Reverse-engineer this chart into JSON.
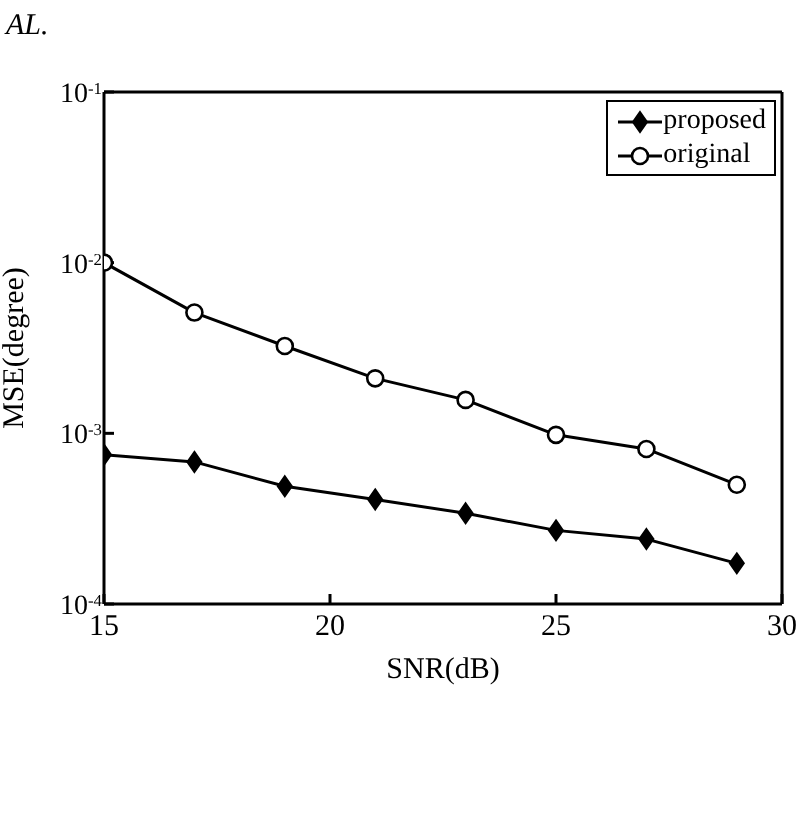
{
  "chart_data": {
    "type": "line",
    "xlabel": "SNR(dB)",
    "ylabel": "MSE(degree)",
    "annotations": [
      "AL."
    ],
    "x": [
      15,
      17,
      19,
      21,
      23,
      25,
      27,
      29
    ],
    "series": [
      {
        "name": "proposed",
        "color": "#000000",
        "marker": "diamond",
        "values": [
          0.00075,
          0.00068,
          0.00049,
          0.00041,
          0.00034,
          0.00027,
          0.00024,
          0.000173
        ]
      },
      {
        "name": "original",
        "color": "#000000",
        "marker": "circle",
        "values": [
          0.01,
          0.0051,
          0.00325,
          0.0021,
          0.00157,
          0.00098,
          0.00081,
          0.0005
        ]
      }
    ],
    "log": "y",
    "xlim": [
      15,
      30
    ],
    "xticks": [
      15,
      20,
      25,
      30
    ],
    "ylim": [
      0.0001,
      0.1
    ],
    "yticks": [
      {
        "value": 0.0001,
        "label": "10$^{-4}$"
      },
      {
        "value": 0.001,
        "label": "10$^{-3}$"
      },
      {
        "value": 0.01,
        "label": "10$^{-2}$"
      },
      {
        "value": 0.1,
        "label": "10$^{-1}$"
      }
    ],
    "grid": false,
    "legend": "top right",
    "line_style": "solid"
  }
}
